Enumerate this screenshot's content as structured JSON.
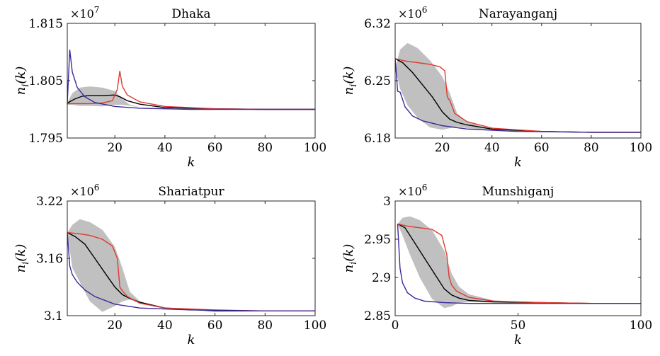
{
  "chart_data": [
    {
      "type": "line",
      "title": "Dhaka",
      "xlabel": "k",
      "ylabel": "n_i(k)",
      "multiplier": "×10",
      "multiplier_exp": "7",
      "xlim": [
        1,
        100
      ],
      "ylim": [
        1.795,
        1.815
      ],
      "xticks": [
        20,
        40,
        60,
        80,
        100
      ],
      "xtick_labels": [
        "20",
        "40",
        "60",
        "80",
        "100"
      ],
      "yticks": [
        1.795,
        1.805,
        1.815
      ],
      "ytick_labels": [
        "1.795",
        "1.805",
        "1.815"
      ],
      "band": {
        "color": "#c0c0c0",
        "x": [
          1,
          3,
          6,
          10,
          15,
          20,
          23,
          26,
          30,
          40,
          60,
          80,
          100
        ],
        "upper": [
          1.8012,
          1.8028,
          1.8038,
          1.804,
          1.8038,
          1.8032,
          1.8018,
          1.8008,
          1.8004,
          1.8001,
          1.8,
          1.8,
          1.8
        ],
        "lower": [
          1.8008,
          1.8008,
          1.8006,
          1.8006,
          1.8005,
          1.8008,
          1.8008,
          1.8006,
          1.8004,
          1.8001,
          1.8,
          1.8,
          1.8
        ]
      },
      "series": [
        {
          "color": "#000000",
          "x": [
            1,
            4,
            7,
            10,
            15,
            20,
            22,
            25,
            30,
            40,
            60,
            80,
            100
          ],
          "values": [
            1.8011,
            1.8018,
            1.8023,
            1.8024,
            1.8024,
            1.8025,
            1.8022,
            1.8015,
            1.8009,
            1.8003,
            1.8001,
            1.8,
            1.8
          ]
        },
        {
          "color": "#e03a2f",
          "x": [
            1,
            5,
            10,
            15,
            19,
            21,
            22,
            23,
            25,
            30,
            40,
            60,
            80,
            100
          ],
          "values": [
            1.801,
            1.801,
            1.801,
            1.8011,
            1.8015,
            1.8035,
            1.8067,
            1.804,
            1.8025,
            1.8013,
            1.8005,
            1.8001,
            1.8,
            1.8
          ]
        },
        {
          "color": "#3b2a9a",
          "x": [
            1,
            2,
            3,
            5,
            8,
            12,
            20,
            30,
            50,
            80,
            100
          ],
          "values": [
            1.801,
            1.8104,
            1.8065,
            1.8038,
            1.8022,
            1.8012,
            1.8005,
            1.8002,
            1.8,
            1.8,
            1.8
          ]
        }
      ]
    },
    {
      "type": "line",
      "title": "Narayanganj",
      "xlabel": "k",
      "ylabel": "n_i(k)",
      "multiplier": "×10",
      "multiplier_exp": "6",
      "xlim": [
        1,
        100
      ],
      "ylim": [
        6.18,
        6.32
      ],
      "xticks": [
        20,
        40,
        60,
        80,
        100
      ],
      "xtick_labels": [
        "20",
        "40",
        "60",
        "80",
        "100"
      ],
      "yticks": [
        6.18,
        6.25,
        6.32
      ],
      "ytick_labels": [
        "6.18",
        "6.25",
        "6.32"
      ],
      "band": {
        "color": "#c0c0c0",
        "x": [
          1,
          3,
          6,
          10,
          15,
          20,
          23,
          26,
          30,
          40,
          60,
          80,
          100
        ],
        "upper": [
          6.265,
          6.288,
          6.296,
          6.29,
          6.275,
          6.255,
          6.235,
          6.21,
          6.2,
          6.19,
          6.188,
          6.187,
          6.187
        ],
        "lower": [
          6.265,
          6.24,
          6.22,
          6.205,
          6.193,
          6.19,
          6.192,
          6.194,
          6.192,
          6.189,
          6.188,
          6.187,
          6.187
        ]
      },
      "series": [
        {
          "color": "#000000",
          "x": [
            1,
            4,
            8,
            12,
            16,
            20,
            23,
            26,
            30,
            40,
            60,
            80,
            100
          ],
          "values": [
            6.277,
            6.272,
            6.26,
            6.245,
            6.23,
            6.212,
            6.203,
            6.199,
            6.196,
            6.191,
            6.188,
            6.187,
            6.187
          ]
        },
        {
          "color": "#e03a2f",
          "x": [
            1,
            5,
            10,
            15,
            19,
            21,
            22,
            23,
            25,
            30,
            40,
            60,
            80,
            100
          ],
          "values": [
            6.277,
            6.274,
            6.272,
            6.27,
            6.267,
            6.262,
            6.23,
            6.226,
            6.21,
            6.2,
            6.192,
            6.188,
            6.187,
            6.187
          ]
        },
        {
          "color": "#3b2a9a",
          "x": [
            1,
            2,
            3,
            5,
            8,
            12,
            20,
            30,
            50,
            80,
            100
          ],
          "values": [
            6.277,
            6.237,
            6.236,
            6.218,
            6.207,
            6.201,
            6.195,
            6.191,
            6.188,
            6.187,
            6.187
          ]
        }
      ]
    },
    {
      "type": "line",
      "title": "Shariatpur",
      "xlabel": "k",
      "ylabel": "n_i(k)",
      "multiplier": "×10",
      "multiplier_exp": "6",
      "xlim": [
        1,
        100
      ],
      "ylim": [
        3.1,
        3.22
      ],
      "xticks": [
        20,
        40,
        60,
        80,
        100
      ],
      "xtick_labels": [
        "20",
        "40",
        "60",
        "80",
        "100"
      ],
      "yticks": [
        3.1,
        3.16,
        3.22
      ],
      "ytick_labels": [
        "3.1",
        "3.16",
        "3.22"
      ],
      "band": {
        "color": "#c0c0c0",
        "x": [
          1,
          3,
          6,
          10,
          15,
          20,
          23,
          26,
          30,
          40,
          60,
          80,
          100
        ],
        "upper": [
          3.187,
          3.195,
          3.201,
          3.198,
          3.19,
          3.172,
          3.15,
          3.125,
          3.115,
          3.107,
          3.105,
          3.105,
          3.105
        ],
        "lower": [
          3.187,
          3.15,
          3.135,
          3.115,
          3.104,
          3.11,
          3.115,
          3.117,
          3.113,
          3.107,
          3.105,
          3.105,
          3.105
        ]
      },
      "series": [
        {
          "color": "#000000",
          "x": [
            1,
            4,
            8,
            12,
            16,
            20,
            23,
            26,
            30,
            40,
            60,
            80,
            100
          ],
          "values": [
            3.187,
            3.183,
            3.175,
            3.16,
            3.145,
            3.13,
            3.122,
            3.118,
            3.114,
            3.108,
            3.105,
            3.105,
            3.105
          ]
        },
        {
          "color": "#e03a2f",
          "x": [
            1,
            5,
            10,
            15,
            19,
            21,
            22,
            23,
            25,
            30,
            40,
            60,
            80,
            100
          ],
          "values": [
            3.187,
            3.186,
            3.184,
            3.18,
            3.173,
            3.16,
            3.13,
            3.126,
            3.12,
            3.113,
            3.108,
            3.106,
            3.105,
            3.105
          ]
        },
        {
          "color": "#3b2a9a",
          "x": [
            1,
            2,
            3,
            5,
            8,
            12,
            20,
            30,
            50,
            80,
            100
          ],
          "values": [
            3.187,
            3.152,
            3.143,
            3.135,
            3.127,
            3.12,
            3.112,
            3.108,
            3.106,
            3.105,
            3.105
          ]
        }
      ]
    },
    {
      "type": "line",
      "title": "Munshiganj",
      "xlabel": "k",
      "ylabel": "n_i(k)",
      "multiplier": "×10",
      "multiplier_exp": "6",
      "xlim": [
        0,
        100
      ],
      "ylim": [
        2.85,
        3.0
      ],
      "xticks": [
        0,
        50,
        100
      ],
      "xtick_labels": [
        "0",
        "50",
        "100"
      ],
      "yticks": [
        2.85,
        2.9,
        2.95,
        3.0
      ],
      "ytick_labels": [
        "2.85",
        "2.9",
        "2.95",
        "3"
      ],
      "band": {
        "color": "#c0c0c0",
        "x": [
          1,
          3,
          6,
          10,
          15,
          20,
          23,
          26,
          30,
          40,
          60,
          80,
          100
        ],
        "upper": [
          2.97,
          2.978,
          2.98,
          2.975,
          2.962,
          2.935,
          2.905,
          2.888,
          2.878,
          2.87,
          2.867,
          2.866,
          2.866
        ],
        "lower": [
          2.97,
          2.955,
          2.93,
          2.9,
          2.872,
          2.86,
          2.862,
          2.867,
          2.868,
          2.867,
          2.866,
          2.866,
          2.866
        ]
      },
      "series": [
        {
          "color": "#000000",
          "x": [
            1,
            4,
            8,
            12,
            16,
            20,
            23,
            26,
            30,
            40,
            60,
            80,
            100
          ],
          "values": [
            2.97,
            2.965,
            2.945,
            2.925,
            2.905,
            2.885,
            2.877,
            2.873,
            2.87,
            2.868,
            2.867,
            2.866,
            2.866
          ]
        },
        {
          "color": "#e03a2f",
          "x": [
            1,
            5,
            10,
            15,
            19,
            21,
            22,
            23,
            25,
            30,
            40,
            60,
            80,
            100
          ],
          "values": [
            2.97,
            2.967,
            2.965,
            2.963,
            2.955,
            2.93,
            2.9,
            2.89,
            2.882,
            2.874,
            2.869,
            2.867,
            2.866,
            2.866
          ]
        },
        {
          "color": "#3b2a9a",
          "x": [
            1,
            2,
            3,
            5,
            8,
            12,
            20,
            30,
            50,
            80,
            100
          ],
          "values": [
            2.97,
            2.912,
            2.893,
            2.88,
            2.873,
            2.869,
            2.867,
            2.866,
            2.866,
            2.866,
            2.866
          ]
        }
      ]
    }
  ]
}
